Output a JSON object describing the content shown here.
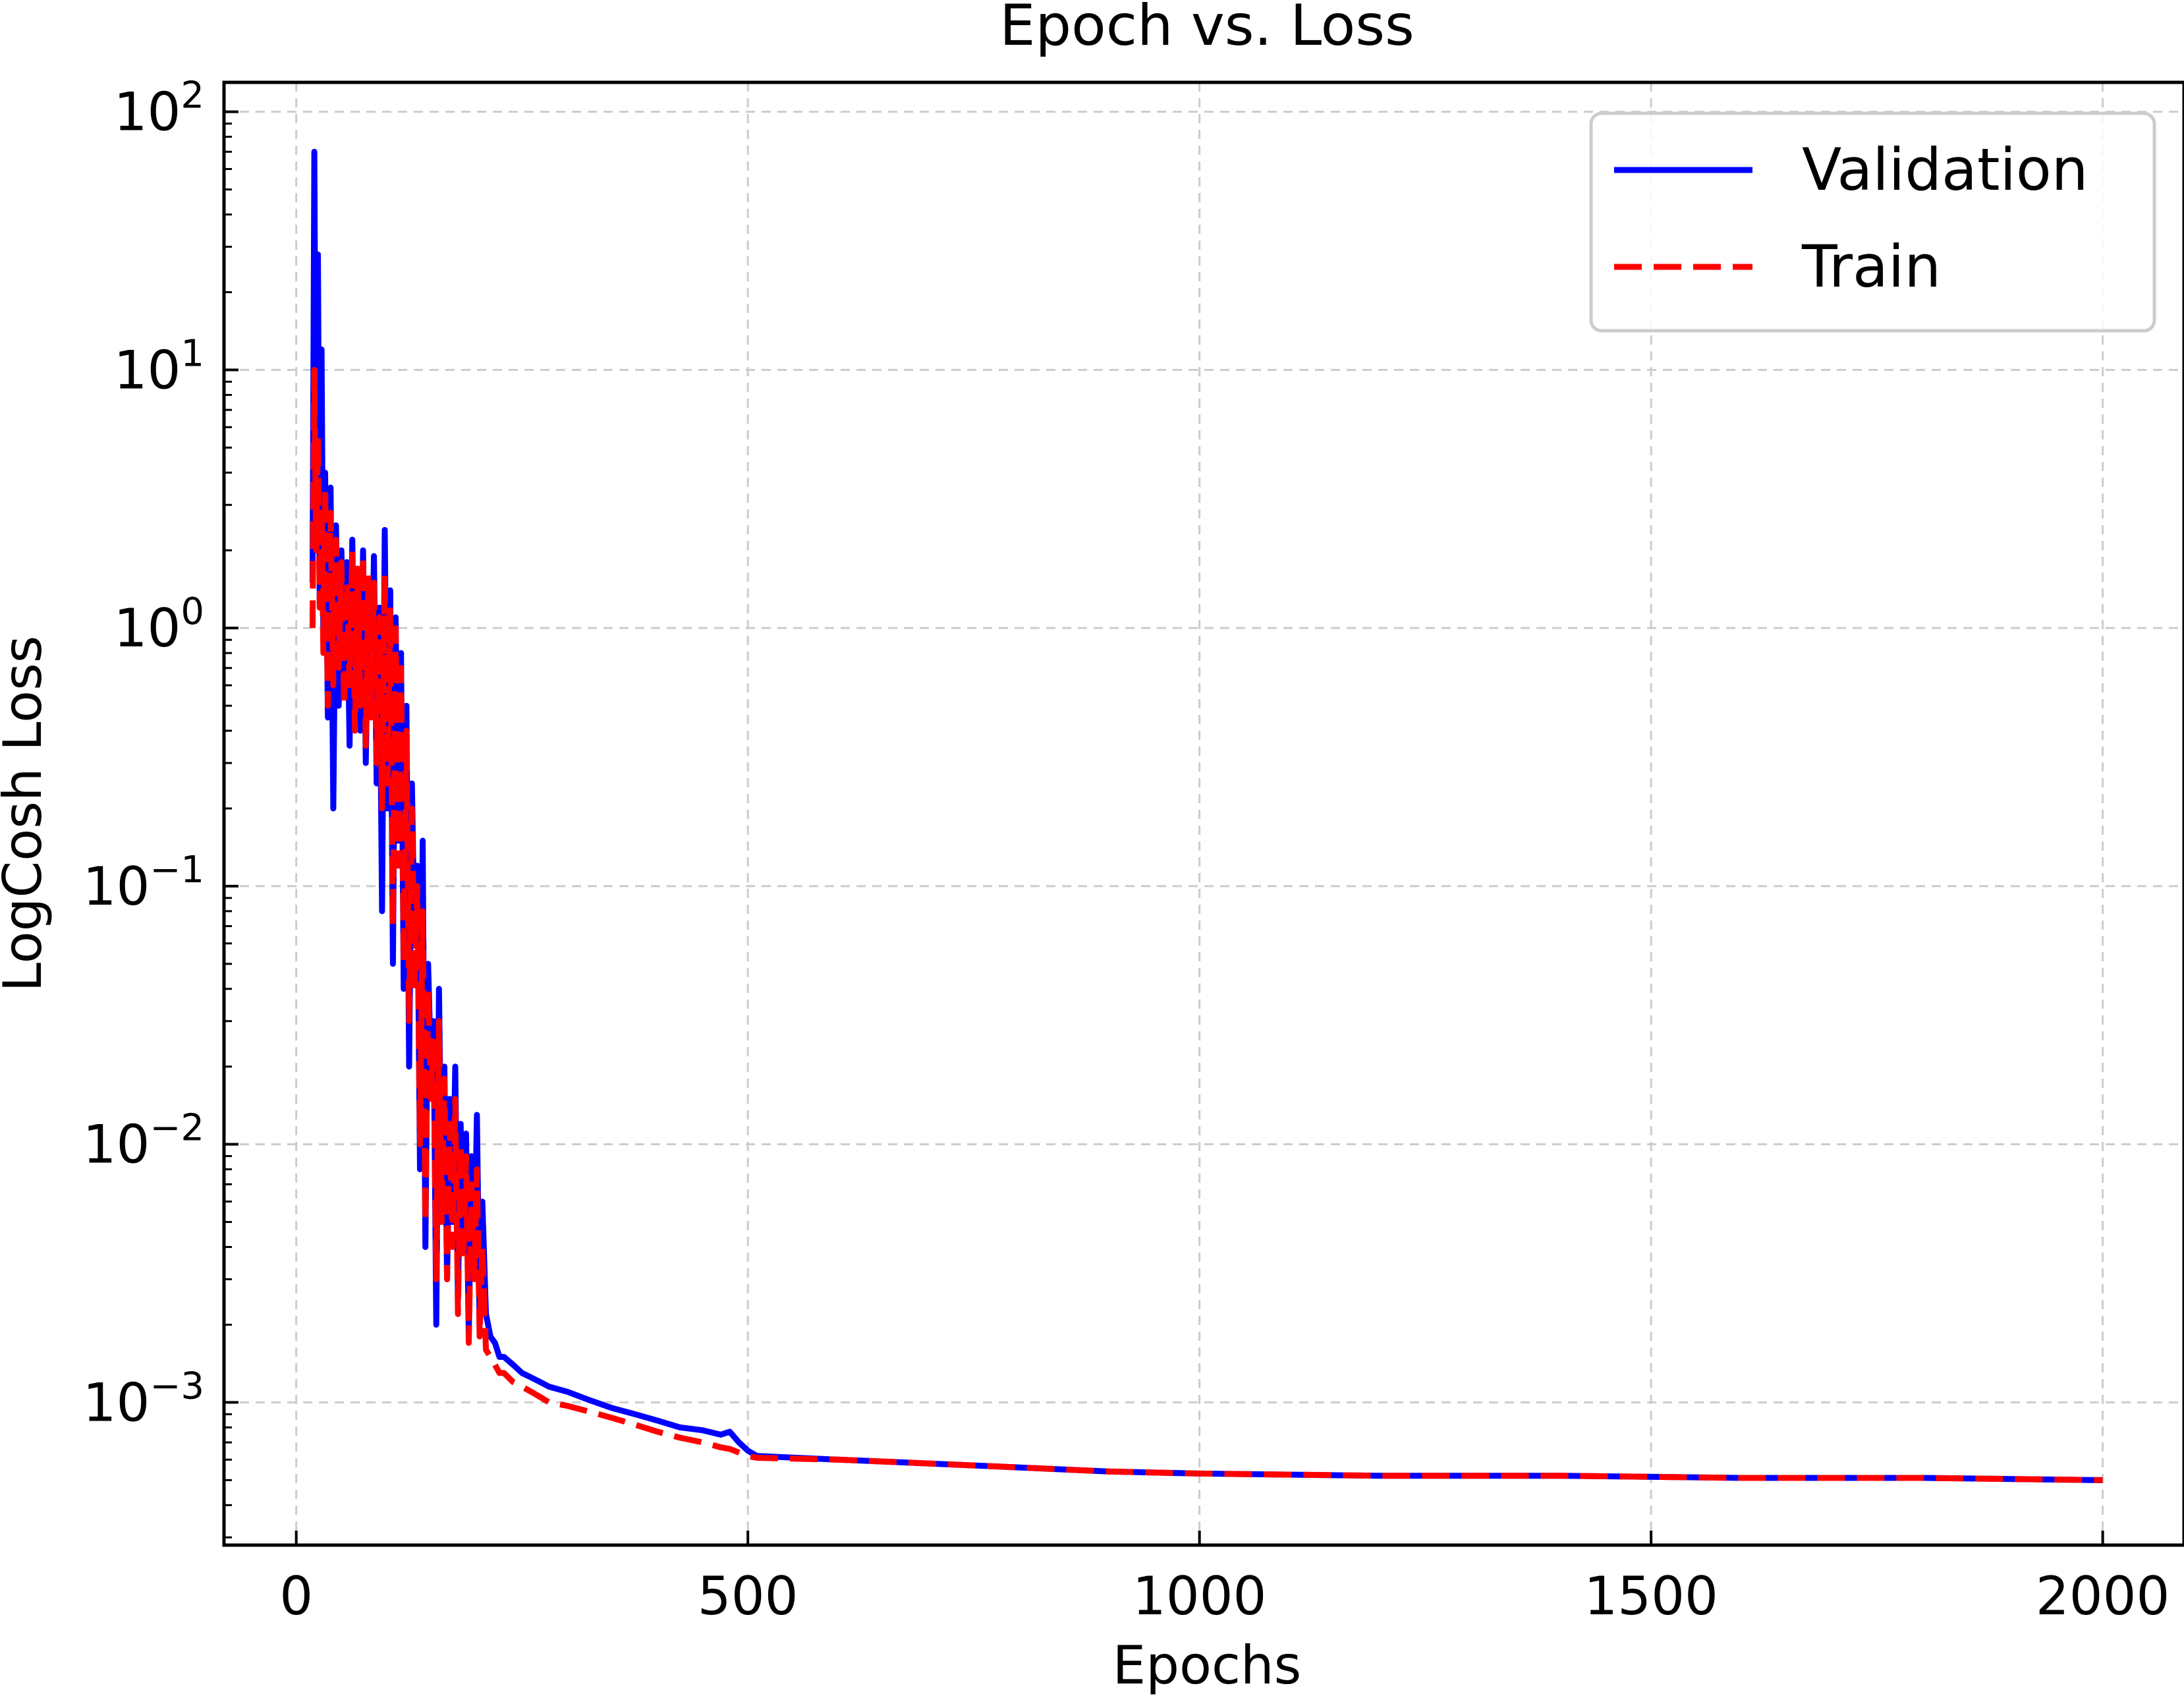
{
  "chart_data": {
    "type": "line",
    "title": "Epoch vs. Loss",
    "xlabel": "Epochs",
    "ylabel": "LogCosh Loss",
    "xlim": [
      -80,
      2090
    ],
    "ylim": [
      0.00028,
      130
    ],
    "yscale": "log",
    "grid": true,
    "legend_position": "top-right",
    "xticks": [
      {
        "value": 0,
        "label": "0"
      },
      {
        "value": 500,
        "label": "500"
      },
      {
        "value": 1000,
        "label": "1000"
      },
      {
        "value": 1500,
        "label": "1500"
      },
      {
        "value": 2000,
        "label": "2000"
      }
    ],
    "yticks": [
      {
        "value": 100,
        "base": "10",
        "exp": "2"
      },
      {
        "value": 10,
        "base": "10",
        "exp": "1"
      },
      {
        "value": 1,
        "base": "10",
        "exp": "0"
      },
      {
        "value": 0.1,
        "base": "10",
        "exp": "−1"
      },
      {
        "value": 0.01,
        "base": "10",
        "exp": "−2"
      },
      {
        "value": 0.001,
        "base": "10",
        "exp": "−3"
      }
    ],
    "series": [
      {
        "name": "Validation",
        "color": "#0000ff",
        "dash": "solid",
        "x": [
          18,
          20,
          22,
          24,
          26,
          28,
          30,
          32,
          35,
          38,
          41,
          44,
          47,
          50,
          53,
          56,
          59,
          62,
          65,
          68,
          71,
          74,
          77,
          80,
          83,
          86,
          89,
          92,
          95,
          98,
          101,
          104,
          107,
          110,
          113,
          116,
          119,
          122,
          125,
          128,
          131,
          134,
          137,
          140,
          143,
          146,
          149,
          152,
          155,
          158,
          161,
          164,
          167,
          170,
          173,
          176,
          179,
          182,
          185,
          188,
          191,
          194,
          197,
          200,
          203,
          206,
          210,
          215,
          220,
          225,
          230,
          240,
          250,
          260,
          270,
          280,
          300,
          325,
          350,
          375,
          400,
          425,
          450,
          470,
          480,
          490,
          500,
          510,
          600,
          700,
          800,
          900,
          1000,
          1200,
          1400,
          1600,
          1800,
          2000
        ],
        "y": [
          1.5,
          70,
          3.0,
          28,
          1.2,
          12,
          0.9,
          4.0,
          0.45,
          3.5,
          0.2,
          2.5,
          0.5,
          2.0,
          0.6,
          1.8,
          0.35,
          2.2,
          0.55,
          1.6,
          0.4,
          2.0,
          0.3,
          1.5,
          0.5,
          1.9,
          0.25,
          1.2,
          0.08,
          2.4,
          0.2,
          1.4,
          0.05,
          1.1,
          0.15,
          0.8,
          0.04,
          0.5,
          0.02,
          0.25,
          0.06,
          0.12,
          0.008,
          0.15,
          0.004,
          0.05,
          0.02,
          0.03,
          0.002,
          0.04,
          0.006,
          0.02,
          0.003,
          0.015,
          0.005,
          0.02,
          0.0025,
          0.012,
          0.004,
          0.011,
          0.0018,
          0.009,
          0.0035,
          0.013,
          0.002,
          0.006,
          0.0022,
          0.0018,
          0.0017,
          0.0015,
          0.0015,
          0.0014,
          0.0013,
          0.00125,
          0.0012,
          0.00115,
          0.0011,
          0.00102,
          0.00095,
          0.0009,
          0.00085,
          0.0008,
          0.00078,
          0.00075,
          0.00077,
          0.0007,
          0.00065,
          0.00062,
          0.0006,
          0.00058,
          0.00056,
          0.00054,
          0.00053,
          0.00052,
          0.00052,
          0.00051,
          0.00051,
          0.0005
        ]
      },
      {
        "name": "Train",
        "color": "#ff0000",
        "dash": "dashed",
        "x": [
          18,
          20,
          22,
          24,
          26,
          28,
          30,
          32,
          35,
          38,
          41,
          44,
          47,
          50,
          53,
          56,
          59,
          62,
          65,
          68,
          71,
          74,
          77,
          80,
          83,
          86,
          89,
          92,
          95,
          98,
          101,
          104,
          107,
          110,
          113,
          116,
          119,
          122,
          125,
          128,
          131,
          134,
          137,
          140,
          143,
          146,
          149,
          152,
          155,
          158,
          161,
          164,
          167,
          170,
          173,
          176,
          179,
          182,
          185,
          188,
          191,
          194,
          197,
          200,
          203,
          206,
          210,
          215,
          220,
          225,
          230,
          240,
          250,
          260,
          270,
          280,
          300,
          325,
          350,
          375,
          400,
          425,
          450,
          470,
          480,
          490,
          500,
          510,
          600,
          700,
          800,
          900,
          1000,
          1200,
          1400,
          1600,
          1800,
          2000
        ],
        "y": [
          1.0,
          10,
          2.0,
          5.5,
          1.2,
          3.0,
          0.8,
          3.5,
          0.5,
          2.8,
          0.6,
          2.2,
          0.7,
          1.8,
          0.5,
          1.5,
          0.6,
          2.0,
          0.4,
          1.7,
          0.5,
          1.9,
          0.35,
          1.6,
          0.45,
          1.5,
          0.3,
          1.1,
          0.2,
          1.6,
          0.25,
          1.2,
          0.07,
          1.0,
          0.12,
          0.7,
          0.05,
          0.4,
          0.03,
          0.2,
          0.04,
          0.1,
          0.01,
          0.08,
          0.005,
          0.04,
          0.015,
          0.025,
          0.003,
          0.03,
          0.005,
          0.018,
          0.003,
          0.012,
          0.004,
          0.015,
          0.0022,
          0.01,
          0.0035,
          0.009,
          0.0017,
          0.007,
          0.003,
          0.008,
          0.0018,
          0.004,
          0.0016,
          0.0015,
          0.0014,
          0.0013,
          0.0013,
          0.0012,
          0.00115,
          0.0011,
          0.00105,
          0.001,
          0.00097,
          0.00092,
          0.00087,
          0.00082,
          0.00077,
          0.00073,
          0.0007,
          0.00067,
          0.00066,
          0.00064,
          0.00062,
          0.00061,
          0.0006,
          0.00058,
          0.00056,
          0.00054,
          0.00053,
          0.00052,
          0.00052,
          0.00051,
          0.00051,
          0.0005
        ]
      }
    ]
  }
}
